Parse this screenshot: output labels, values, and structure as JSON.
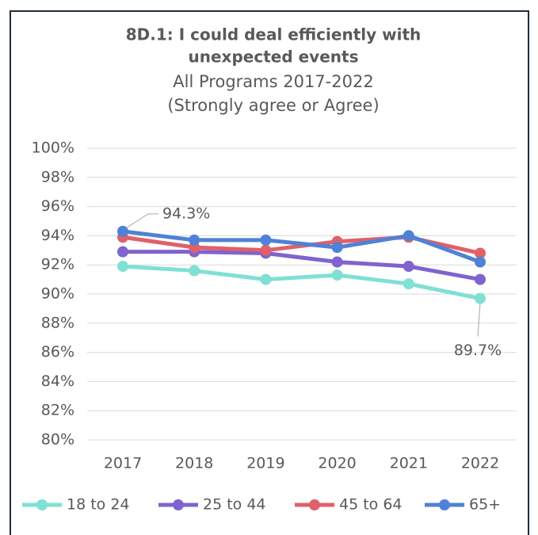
{
  "chart_data": {
    "type": "line",
    "title": [
      "8D.1: I could deal efficiently with",
      "unexpected events"
    ],
    "subtitle": [
      "All Programs 2017-2022",
      "(Strongly agree or Agree)"
    ],
    "categories": [
      "2017",
      "2018",
      "2019",
      "2020",
      "2021",
      "2022"
    ],
    "series": [
      {
        "name": "18 to 24",
        "color": "#7fe0d3",
        "values": [
          91.9,
          91.6,
          91.0,
          91.3,
          90.7,
          89.7
        ],
        "value_labels": [
          null,
          null,
          null,
          null,
          null,
          "89.7%"
        ]
      },
      {
        "name": "25 to 44",
        "color": "#7f63cf",
        "values": [
          92.9,
          92.9,
          92.8,
          92.2,
          91.9,
          91.0
        ]
      },
      {
        "name": "45 to 64",
        "color": "#e0606a",
        "values": [
          93.9,
          93.2,
          93.0,
          93.6,
          93.9,
          92.8
        ]
      },
      {
        "name": "65+",
        "color": "#4f82d6",
        "values": [
          94.3,
          93.7,
          93.7,
          93.2,
          94.0,
          92.2
        ],
        "value_labels": [
          "94.3%",
          null,
          null,
          null,
          null,
          null
        ]
      }
    ],
    "ylim": [
      80,
      100
    ],
    "yticks": [
      {
        "value": 80,
        "label": "80%"
      },
      {
        "value": 82,
        "label": "82%"
      },
      {
        "value": 84,
        "label": "84%"
      },
      {
        "value": 86,
        "label": "86%"
      },
      {
        "value": 88,
        "label": "88%"
      },
      {
        "value": 90,
        "label": "90%"
      },
      {
        "value": 92,
        "label": "92%"
      },
      {
        "value": 94,
        "label": "94%"
      },
      {
        "value": 96,
        "label": "96%"
      },
      {
        "value": 98,
        "label": "98%"
      },
      {
        "value": 100,
        "label": "100%"
      }
    ],
    "grid": true,
    "legend": "bottom"
  }
}
